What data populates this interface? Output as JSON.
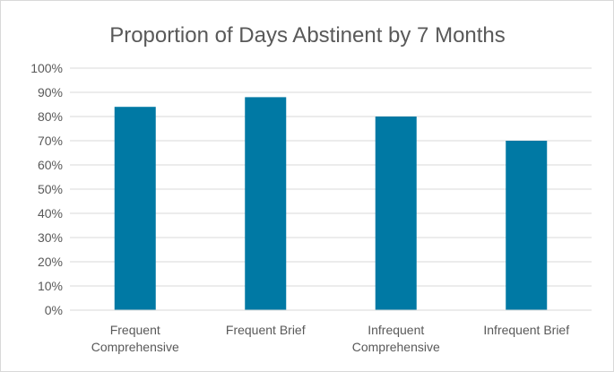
{
  "chart_data": {
    "type": "bar",
    "title": "Proportion of Days Abstinent by 7 Months",
    "categories": [
      [
        "Frequent",
        "Comprehensive"
      ],
      [
        "Frequent Brief"
      ],
      [
        "Infrequent",
        "Comprehensive"
      ],
      [
        "Infrequent Brief"
      ]
    ],
    "values": [
      0.84,
      0.88,
      0.8,
      0.7
    ],
    "ylim": [
      0,
      1
    ],
    "yticks": [
      {
        "value": 0.0,
        "label": "0%"
      },
      {
        "value": 0.1,
        "label": "10%"
      },
      {
        "value": 0.2,
        "label": "20%"
      },
      {
        "value": 0.3,
        "label": "30%"
      },
      {
        "value": 0.4,
        "label": "40%"
      },
      {
        "value": 0.5,
        "label": "50%"
      },
      {
        "value": 0.6,
        "label": "60%"
      },
      {
        "value": 0.7,
        "label": "70%"
      },
      {
        "value": 0.8,
        "label": "80%"
      },
      {
        "value": 0.9,
        "label": "90%"
      },
      {
        "value": 1.0,
        "label": "100%"
      }
    ],
    "grid": true,
    "legend": "none",
    "colors": {
      "bar": "#0079A4",
      "grid": "#D9D9D9",
      "text": "#595959"
    }
  }
}
